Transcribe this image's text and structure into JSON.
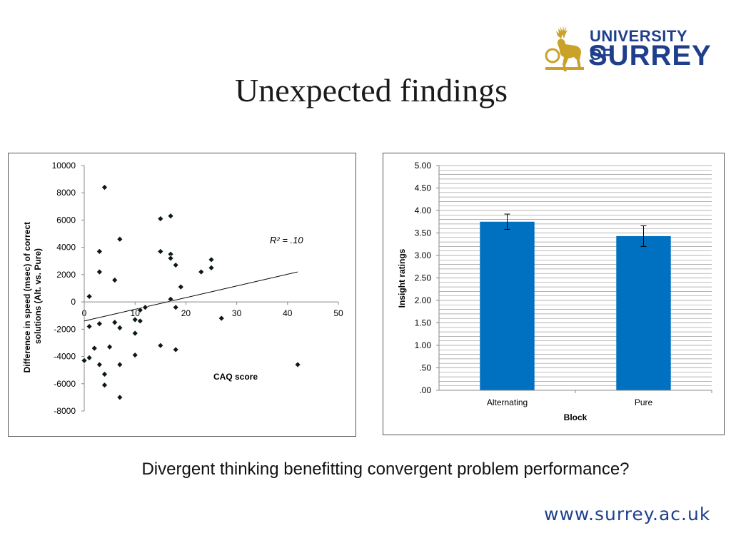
{
  "slide": {
    "title": "Unexpected findings",
    "question": "Divergent thinking benefitting convergent problem performance?",
    "url": "www.surrey.ac.uk"
  },
  "logo": {
    "line1": "UNIVERSITY OF",
    "line2": "SURREY",
    "icon": "stag-icon",
    "brand_color": "#1f3f8c",
    "stag_color": "#c9a227"
  },
  "chart_data": [
    {
      "type": "scatter",
      "xlabel": "CAQ score",
      "ylabel": "Difference in speed (msec) of correct solutions (Alt. vs. Pure)",
      "xlim": [
        0,
        50
      ],
      "ylim": [
        -8000,
        10000
      ],
      "x_ticks": [
        "0",
        "10",
        "20",
        "30",
        "40",
        "50"
      ],
      "y_ticks": [
        "10000",
        "8000",
        "6000",
        "4000",
        "2000",
        "0",
        "-2000",
        "-4000",
        "-6000",
        "-8000"
      ],
      "annotation": "R² = .10",
      "trendline": {
        "x": [
          0,
          42
        ],
        "y": [
          -1400,
          2200
        ]
      },
      "points": [
        {
          "x": 0,
          "y": -4300
        },
        {
          "x": 1,
          "y": 400
        },
        {
          "x": 1,
          "y": -1800
        },
        {
          "x": 1,
          "y": -4100
        },
        {
          "x": 2,
          "y": -3400
        },
        {
          "x": 3,
          "y": 3700
        },
        {
          "x": 3,
          "y": 2200
        },
        {
          "x": 3,
          "y": -1600
        },
        {
          "x": 3,
          "y": -4600
        },
        {
          "x": 4,
          "y": 8400
        },
        {
          "x": 4,
          "y": -5300
        },
        {
          "x": 4,
          "y": -6100
        },
        {
          "x": 5,
          "y": -3300
        },
        {
          "x": 6,
          "y": 1600
        },
        {
          "x": 6,
          "y": -1500
        },
        {
          "x": 7,
          "y": 4600
        },
        {
          "x": 7,
          "y": -1900
        },
        {
          "x": 7,
          "y": -4600
        },
        {
          "x": 7,
          "y": -7000
        },
        {
          "x": 10,
          "y": -1300
        },
        {
          "x": 10,
          "y": -2300
        },
        {
          "x": 10,
          "y": -3900
        },
        {
          "x": 11,
          "y": -600
        },
        {
          "x": 11,
          "y": -1400
        },
        {
          "x": 12,
          "y": -400
        },
        {
          "x": 15,
          "y": 6100
        },
        {
          "x": 15,
          "y": 3700
        },
        {
          "x": 15,
          "y": -3200
        },
        {
          "x": 17,
          "y": 6300
        },
        {
          "x": 17,
          "y": 3500
        },
        {
          "x": 17,
          "y": 3200
        },
        {
          "x": 17,
          "y": 200
        },
        {
          "x": 18,
          "y": 2700
        },
        {
          "x": 18,
          "y": -400
        },
        {
          "x": 18,
          "y": -3500
        },
        {
          "x": 19,
          "y": 1100
        },
        {
          "x": 23,
          "y": 2200
        },
        {
          "x": 25,
          "y": 3100
        },
        {
          "x": 25,
          "y": 2500
        },
        {
          "x": 27,
          "y": -1200
        },
        {
          "x": 42,
          "y": -4600
        }
      ],
      "marker_color": "#0a1a10"
    },
    {
      "type": "bar",
      "xlabel": "Block",
      "ylabel": "Insight ratings",
      "ylim": [
        0,
        5
      ],
      "y_ticks": [
        "5.00",
        "4.50",
        "4.00",
        "3.50",
        "3.00",
        "2.50",
        "2.00",
        "1.50",
        "1.00",
        ".50",
        ".00"
      ],
      "categories": [
        "Alternating",
        "Pure"
      ],
      "values": [
        3.75,
        3.43
      ],
      "error": [
        0.17,
        0.23
      ],
      "grid": true,
      "bar_color": "#0070c0"
    }
  ]
}
